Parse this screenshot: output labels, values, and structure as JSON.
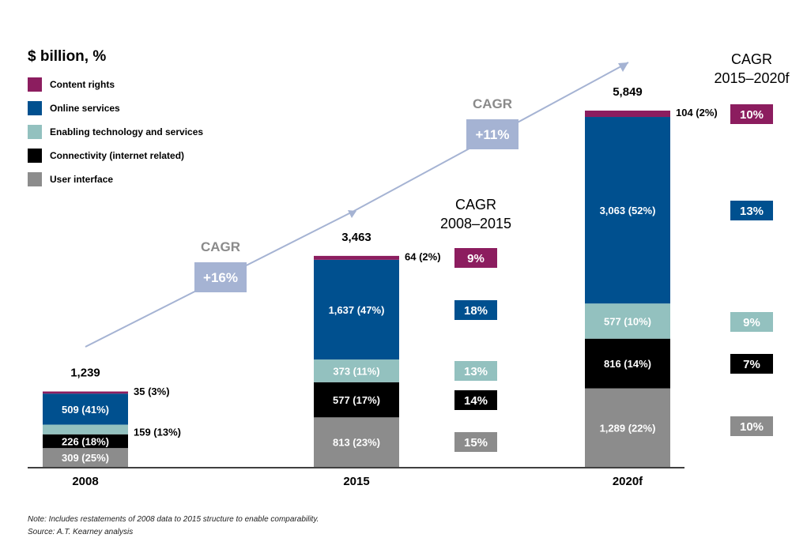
{
  "chart_data": {
    "type": "bar",
    "stacked": true,
    "title": "$ billion, %",
    "categories": [
      "2008",
      "2015",
      "2020f"
    ],
    "totals": [
      "1,239",
      "3,463",
      "5,849"
    ],
    "series": [
      {
        "name": "User interface",
        "color": "#8c8c8c",
        "values": [
          309,
          813,
          1289
        ],
        "labels": [
          "309 (25%)",
          "813 (23%)",
          "1,289 (22%)"
        ],
        "cagr_2008_2015": "15%",
        "cagr_2015_2020f": "10%"
      },
      {
        "name": "Connectivity (internet related)",
        "color": "#000000",
        "values": [
          226,
          577,
          816
        ],
        "labels": [
          "226 (18%)",
          "577 (17%)",
          "816 (14%)"
        ],
        "cagr_2008_2015": "14%",
        "cagr_2015_2020f": "7%"
      },
      {
        "name": "Enabling technology and services",
        "color": "#93c1bf",
        "values": [
          159,
          373,
          577
        ],
        "labels": [
          "159 (13%)",
          "373 (11%)",
          "577 (10%)"
        ],
        "cagr_2008_2015": "13%",
        "cagr_2015_2020f": "9%"
      },
      {
        "name": "Online services",
        "color": "#00508f",
        "values": [
          509,
          1637,
          3063
        ],
        "labels": [
          "509 (41%)",
          "1,637 (47%)",
          "3,063 (52%)"
        ],
        "cagr_2008_2015": "18%",
        "cagr_2015_2020f": "13%"
      },
      {
        "name": "Content rights",
        "color": "#8c1d5f",
        "values": [
          35,
          64,
          104
        ],
        "labels": [
          "35 (3%)",
          "64 (2%)",
          "104 (2%)"
        ],
        "cagr_2008_2015": "9%",
        "cagr_2015_2020f": "10%"
      }
    ],
    "cagr_heading_2008_2015": [
      "CAGR",
      "2008–2015"
    ],
    "cagr_heading_2015_2020f": [
      "CAGR",
      "2015–2020f"
    ],
    "trend_arrow": {
      "caption": "CAGR",
      "segments": [
        "+16%",
        "+11%"
      ]
    },
    "legend_placement": "top-left",
    "grid": false
  },
  "footnotes": {
    "note": "Note: Includes restatements of 2008 data to 2015 structure to enable comparability.",
    "source": "Source: A.T. Kearney analysis"
  }
}
